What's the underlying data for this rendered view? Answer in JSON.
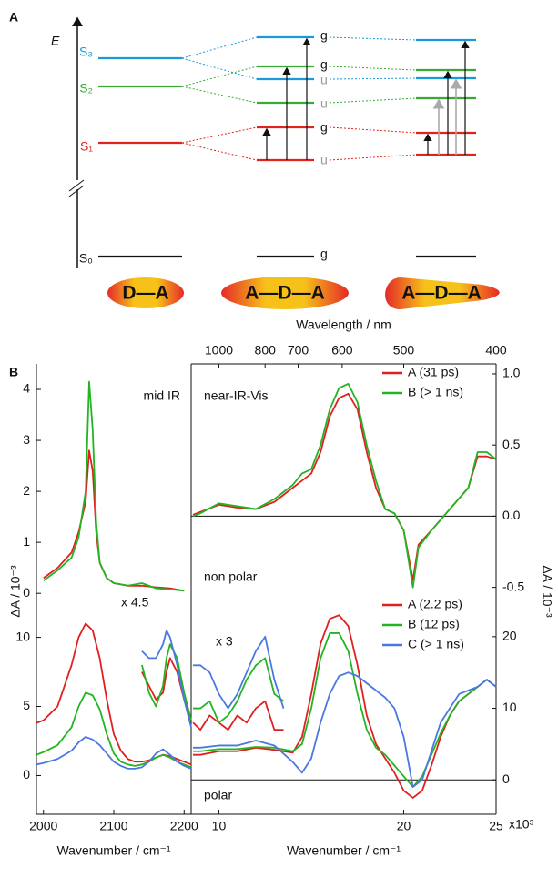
{
  "diagram": {
    "panel": "A",
    "energy_label": "E",
    "state_labels": [
      "S₃",
      "S₂",
      "S₁",
      "S₀"
    ],
    "middle_symmetry": [
      "g",
      "g",
      "u",
      "u",
      "g",
      "u",
      "g"
    ],
    "molecules": [
      "D—A",
      "A—D—A",
      "A—D—A"
    ]
  },
  "chart_data": [
    {
      "type": "line",
      "panel": "B",
      "annotation": "mid IR",
      "ylabel": "ΔA / 10⁻³",
      "xlim": [
        1990,
        2210
      ],
      "ylim": [
        -0.05,
        4.5
      ],
      "yticks": [
        0,
        1,
        2,
        3,
        4
      ],
      "series": [
        {
          "color": "#e02020",
          "x": [
            2000,
            2020,
            2040,
            2050,
            2060,
            2065,
            2070,
            2075,
            2080,
            2090,
            2100,
            2120,
            2140,
            2160,
            2180,
            2200
          ],
          "values": [
            0.3,
            0.5,
            0.8,
            1.2,
            1.8,
            2.8,
            2.4,
            1.2,
            0.6,
            0.3,
            0.2,
            0.15,
            0.15,
            0.12,
            0.1,
            0.05
          ]
        },
        {
          "color": "#22b422",
          "x": [
            2000,
            2020,
            2040,
            2050,
            2060,
            2065,
            2070,
            2075,
            2080,
            2090,
            2100,
            2120,
            2140,
            2160,
            2180,
            2200
          ],
          "values": [
            0.25,
            0.45,
            0.7,
            1.1,
            2.0,
            4.15,
            3.2,
            1.4,
            0.6,
            0.3,
            0.2,
            0.15,
            0.2,
            0.1,
            0.08,
            0.05
          ]
        }
      ]
    },
    {
      "type": "line",
      "annotation": "near-IR-Vis",
      "annotation_bottom": "non polar",
      "ylabel": "ΔA / 10⁻³",
      "x2label": "Wavelength / nm",
      "xlim": [
        8.5,
        25
      ],
      "ylim": [
        -0.56,
        1.07
      ],
      "yticks": [
        -0.5,
        {
          "value": 0,
          "label": "0.0"
        },
        0.5,
        {
          "value": 1,
          "label": "1.0"
        }
      ],
      "x2ticks": [
        {
          "value": 10,
          "label": "1000"
        },
        {
          "value": 12.5,
          "label": "800"
        },
        {
          "value": 14.29,
          "label": "700"
        },
        {
          "value": 16.67,
          "label": "600"
        },
        {
          "value": 20,
          "label": "500"
        },
        {
          "value": 25,
          "label": "400"
        }
      ],
      "legend": "upper right",
      "series": [
        {
          "name": "A (31 ps)",
          "color": "#e02020",
          "x": [
            8.6,
            9,
            10,
            11,
            12,
            13,
            14,
            14.5,
            15,
            15.5,
            16,
            16.5,
            17,
            17.5,
            18,
            18.5,
            19,
            19.5,
            20,
            20.5,
            20.8,
            21.5,
            22.5,
            23.5,
            24,
            24.5,
            25
          ],
          "values": [
            0.01,
            0.03,
            0.08,
            0.06,
            0.05,
            0.1,
            0.2,
            0.25,
            0.3,
            0.45,
            0.7,
            0.83,
            0.86,
            0.75,
            0.45,
            0.2,
            0.05,
            0.02,
            -0.1,
            -0.45,
            -0.2,
            -0.1,
            0.05,
            0.2,
            0.42,
            0.42,
            0.4
          ]
        },
        {
          "name": "B (> 1 ns)",
          "color": "#22b422",
          "x": [
            8.6,
            9,
            10,
            11,
            12,
            13,
            14,
            14.5,
            15,
            15.5,
            16,
            16.5,
            17,
            17.5,
            18,
            18.5,
            19,
            19.5,
            20,
            20.5,
            20.8,
            21.5,
            22.5,
            23.5,
            24,
            24.5,
            25
          ],
          "values": [
            0.0,
            0.02,
            0.09,
            0.07,
            0.05,
            0.12,
            0.22,
            0.3,
            0.33,
            0.5,
            0.75,
            0.9,
            0.93,
            0.8,
            0.5,
            0.25,
            0.05,
            0.02,
            -0.1,
            -0.5,
            -0.22,
            -0.1,
            0.05,
            0.2,
            0.45,
            0.45,
            0.4
          ]
        }
      ]
    },
    {
      "type": "line",
      "magnification_label": "x 4.5",
      "xlabel": "Wavenumber / cm⁻¹",
      "xlim": [
        1990,
        2210
      ],
      "ylim": [
        -2.8,
        13
      ],
      "yticks": [
        0,
        5,
        10
      ],
      "xticks": [
        2000,
        2100,
        2200
      ],
      "series": [
        {
          "color": "#e02020",
          "x": [
            1990,
            2000,
            2020,
            2040,
            2050,
            2060,
            2070,
            2080,
            2090,
            2100,
            2110,
            2120,
            2130,
            2140,
            2150,
            2160,
            2170,
            2180,
            2190,
            2200,
            2210
          ],
          "values": [
            3.8,
            4.0,
            5.0,
            8.0,
            10.0,
            11.0,
            10.5,
            8.5,
            5.5,
            3.0,
            1.8,
            1.2,
            1.0,
            1.0,
            1.1,
            1.3,
            1.5,
            1.4,
            1.2,
            1.0,
            0.8
          ]
        },
        {
          "color": "#22b422",
          "x": [
            1990,
            2000,
            2020,
            2040,
            2050,
            2060,
            2070,
            2080,
            2090,
            2100,
            2110,
            2120,
            2130,
            2140,
            2150,
            2160,
            2170,
            2180,
            2190,
            2200,
            2210
          ],
          "values": [
            1.5,
            1.7,
            2.2,
            3.5,
            5.0,
            6.0,
            5.8,
            4.8,
            3.0,
            1.6,
            1.0,
            0.8,
            0.7,
            0.8,
            1.0,
            1.3,
            1.5,
            1.3,
            1.0,
            0.8,
            0.6
          ]
        },
        {
          "color": "#4a78e0",
          "x": [
            1990,
            2000,
            2020,
            2040,
            2050,
            2060,
            2070,
            2080,
            2090,
            2100,
            2110,
            2120,
            2130,
            2140,
            2150,
            2160,
            2170,
            2180,
            2190,
            2200,
            2210
          ],
          "values": [
            0.8,
            0.9,
            1.2,
            1.8,
            2.4,
            2.8,
            2.6,
            2.2,
            1.6,
            1.0,
            0.7,
            0.5,
            0.5,
            0.6,
            1.0,
            1.6,
            1.9,
            1.5,
            1.0,
            0.7,
            0.5
          ]
        },
        {
          "color": "#e02020",
          "x": [
            2140,
            2150,
            2160,
            2170,
            2175,
            2180,
            2190,
            2200,
            2210
          ],
          "values": [
            7.5,
            6.5,
            5.5,
            6.0,
            7.5,
            8.5,
            7.5,
            5.5,
            4.0
          ]
        },
        {
          "color": "#22b422",
          "x": [
            2140,
            2150,
            2160,
            2170,
            2175,
            2180,
            2190,
            2200,
            2210
          ],
          "values": [
            8.0,
            6.0,
            5.0,
            6.5,
            8.5,
            9.5,
            8.5,
            6.0,
            4.0
          ]
        },
        {
          "color": "#4a78e0",
          "x": [
            2140,
            2150,
            2160,
            2170,
            2175,
            2180,
            2190,
            2200,
            2210
          ],
          "values": [
            9.0,
            8.5,
            8.5,
            9.5,
            10.5,
            10.0,
            8.0,
            5.5,
            3.5
          ]
        }
      ]
    },
    {
      "type": "line",
      "magnification_label": "x 3",
      "annotation_bottom": "polar",
      "xlabel": "Wavenumber / cm⁻¹",
      "x_scale_note": "x10³",
      "xlim": [
        8.5,
        25
      ],
      "ylim": [
        -4.8,
        25.7
      ],
      "yticks": [
        0,
        10,
        20
      ],
      "xticks": [
        10,
        20,
        25
      ],
      "legend": "upper right",
      "series": [
        {
          "name": "A (2.2 ps)",
          "color": "#e02020",
          "x": [
            8.6,
            9,
            10,
            11,
            12,
            13,
            14,
            14.5,
            15,
            15.5,
            16,
            16.5,
            17,
            17.5,
            18,
            18.5,
            19,
            19.5,
            20,
            20.5,
            21,
            21.5,
            22,
            22.5,
            23,
            23.5,
            24,
            24.5,
            25
          ],
          "values": [
            3.5,
            3.5,
            4.0,
            4.0,
            4.5,
            4.2,
            3.8,
            6,
            12,
            19,
            22.5,
            23,
            21.5,
            16,
            9,
            5,
            3,
            1,
            -1.5,
            -2.5,
            -1.5,
            2,
            6,
            9,
            11,
            12,
            13,
            14,
            13
          ]
        },
        {
          "name": "B (12 ps)",
          "color": "#22b422",
          "x": [
            8.6,
            9,
            10,
            11,
            12,
            13,
            14,
            14.5,
            15,
            15.5,
            16,
            16.5,
            17,
            17.5,
            18,
            18.5,
            19,
            19.5,
            20,
            20.5,
            21,
            21.5,
            22,
            22.5,
            23,
            23.5,
            24,
            24.5,
            25
          ],
          "values": [
            4,
            4,
            4.3,
            4.3,
            4.6,
            4.5,
            4,
            5,
            10,
            17,
            20.5,
            20.5,
            18,
            12,
            7,
            4.5,
            3.5,
            2,
            0.5,
            -1,
            0.5,
            3.5,
            6.5,
            9,
            11,
            12,
            13,
            14,
            13
          ]
        },
        {
          "name": "C (> 1 ns)",
          "color": "#4a78e0",
          "x": [
            8.6,
            9,
            10,
            11,
            12,
            13,
            14,
            14.5,
            15,
            15.5,
            16,
            16.5,
            17,
            17.5,
            18,
            18.5,
            19,
            19.5,
            20,
            20.5,
            21,
            21.5,
            22,
            22.5,
            23,
            23.5,
            24,
            24.5,
            25
          ],
          "values": [
            4.5,
            4.5,
            4.8,
            4.8,
            5.5,
            4.8,
            2.5,
            1,
            3,
            8,
            12,
            14.5,
            15,
            14.5,
            13.5,
            12.5,
            11.5,
            10,
            6,
            -1,
            0,
            4,
            8,
            10,
            12,
            12.5,
            13,
            14,
            13
          ]
        },
        {
          "color": "#e02020",
          "x": [
            8.6,
            9,
            9.5,
            10,
            10.5,
            11,
            11.5,
            12,
            12.5,
            13,
            13.5
          ],
          "values": [
            8,
            7,
            9,
            8,
            7,
            9,
            8,
            10,
            11,
            7,
            7
          ]
        },
        {
          "color": "#22b422",
          "x": [
            8.6,
            9,
            9.5,
            10,
            10.5,
            11,
            11.5,
            12,
            12.5,
            13,
            13.5
          ],
          "values": [
            10,
            10,
            11,
            8,
            9,
            11,
            14,
            16,
            17,
            12,
            11
          ]
        },
        {
          "color": "#4a78e0",
          "x": [
            8.6,
            9,
            9.5,
            10,
            10.5,
            11,
            11.5,
            12,
            12.5,
            13,
            13.5
          ],
          "values": [
            16,
            16,
            15,
            12,
            10,
            12,
            15,
            18,
            20,
            14,
            10
          ]
        }
      ]
    }
  ]
}
